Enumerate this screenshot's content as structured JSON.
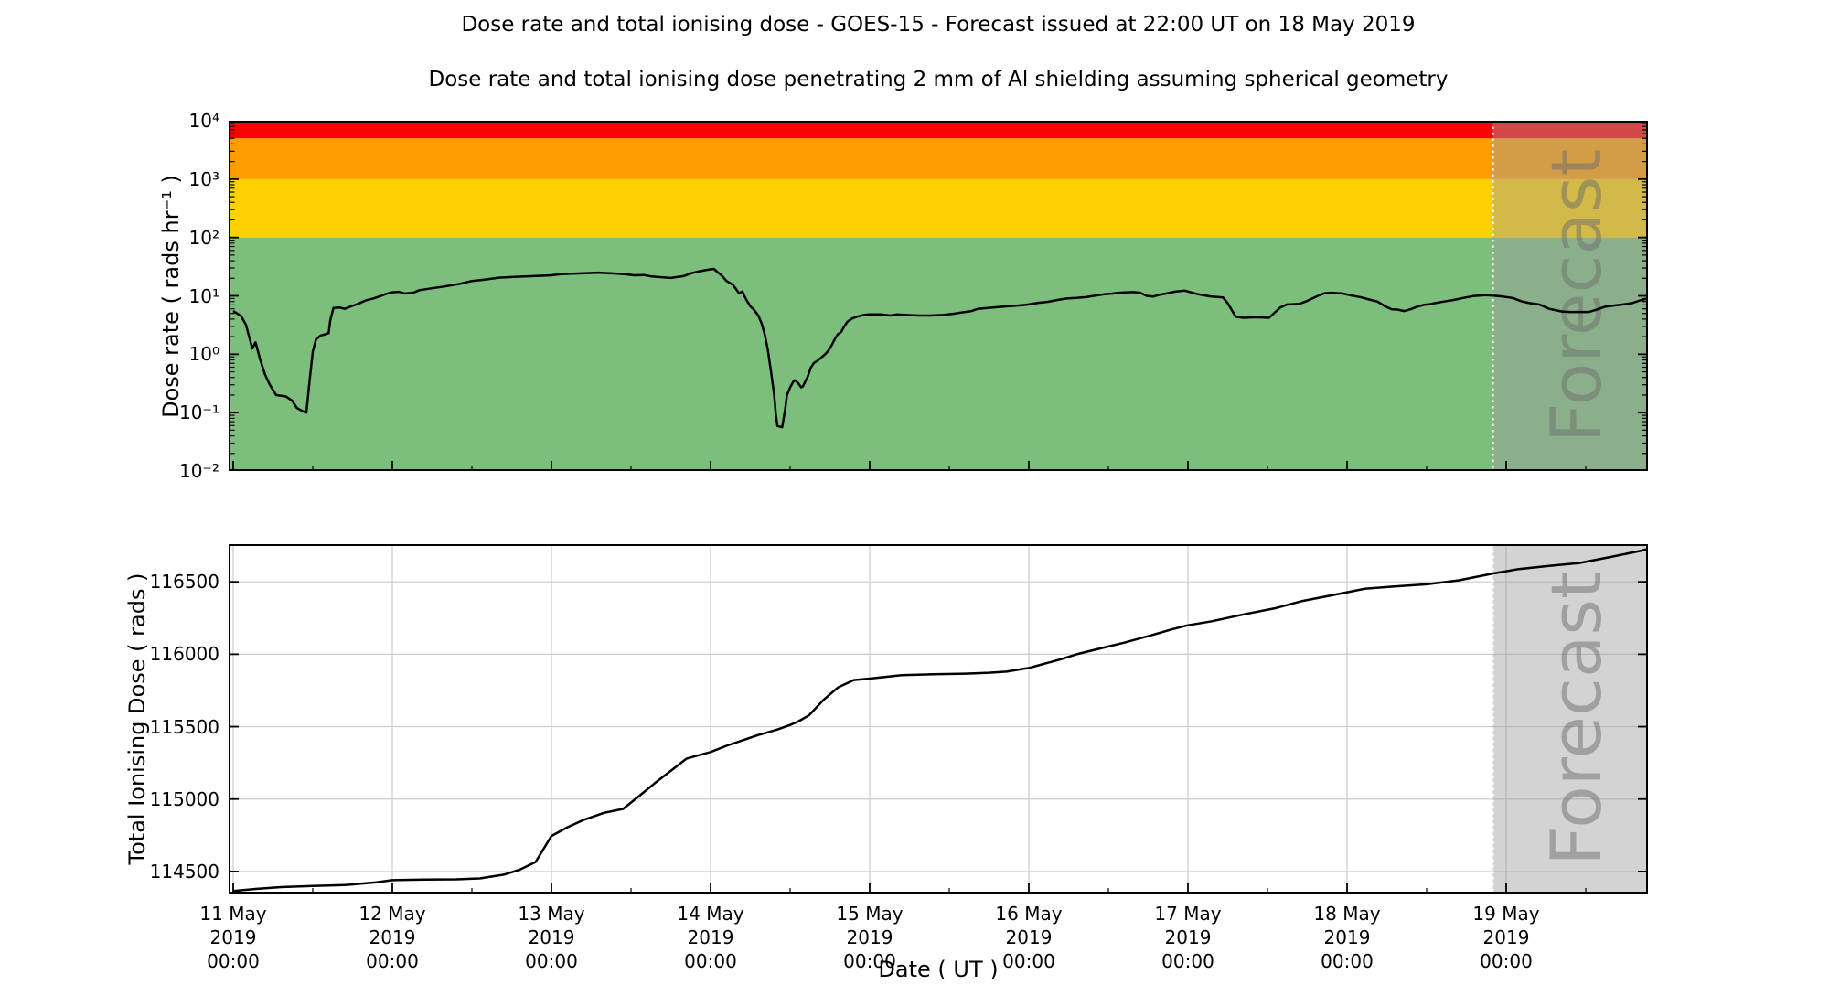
{
  "title": "Dose rate and total ionising dose - GOES-15 - Forecast issued at 22:00 UT on 18 May 2019",
  "subtitle": "Dose rate and total ionising dose penetrating 2 mm of Al shielding assuming spherical geometry",
  "xlabel": "Date ( UT )",
  "forecast": {
    "label": "Forecast",
    "start_days_from_11_may": 7.9167,
    "issued": "22:00 UT on 18 May 2019"
  },
  "colors": {
    "band_green": "#7cbe7c",
    "band_yellow": "#ffd000",
    "band_orange": "#ff9c00",
    "band_red": "#fe0000",
    "forecast_overlay": "rgba(158,158,158,0.45)",
    "watermark_gray": "#6e6e6e",
    "gridline": "#cccccc",
    "line": "#000000",
    "dotted_boundary": "#ffffff"
  },
  "top_chart": {
    "ylabel": "Dose rate ( rads hr⁻¹ )",
    "ytick_labels": [
      "10⁻²",
      "10⁻¹",
      "10⁰",
      "10¹",
      "10²",
      "10³",
      "10⁴"
    ],
    "ytick_exponents": [
      -2,
      -1,
      0,
      1,
      2,
      3,
      4
    ]
  },
  "bottom_chart": {
    "ylabel": "Total Ionising Dose ( rads )",
    "ytick_labels": [
      "114500",
      "115000",
      "115500",
      "116000",
      "116500"
    ],
    "ytick_values": [
      114500,
      115000,
      115500,
      116000,
      116500
    ]
  },
  "x_ticks": [
    {
      "day": "11 May",
      "year": "2019",
      "time": "00:00"
    },
    {
      "day": "12 May",
      "year": "2019",
      "time": "00:00"
    },
    {
      "day": "13 May",
      "year": "2019",
      "time": "00:00"
    },
    {
      "day": "14 May",
      "year": "2019",
      "time": "00:00"
    },
    {
      "day": "15 May",
      "year": "2019",
      "time": "00:00"
    },
    {
      "day": "16 May",
      "year": "2019",
      "time": "00:00"
    },
    {
      "day": "17 May",
      "year": "2019",
      "time": "00:00"
    },
    {
      "day": "18 May",
      "year": "2019",
      "time": "00:00"
    },
    {
      "day": "19 May",
      "year": "2019",
      "time": "00:00"
    }
  ],
  "chart_data": [
    {
      "type": "line",
      "name": "dose_rate",
      "title": "Dose rate ( rads/hr ) vs time",
      "x_unit": "days since 11 May 2019 00:00 UT",
      "xlim": [
        0,
        8.89
      ],
      "yscale": "log",
      "ylim": [
        0.01,
        10000
      ],
      "threshold_bands": [
        {
          "name": "green",
          "from": 0.01,
          "to": 100,
          "color": "#7cbe7c"
        },
        {
          "name": "yellow",
          "from": 100,
          "to": 1000,
          "color": "#ffd000"
        },
        {
          "name": "orange",
          "from": 1000,
          "to": 5000,
          "color": "#ff9c00"
        },
        {
          "name": "red",
          "from": 5000,
          "to": 10000,
          "color": "#fe0000"
        }
      ],
      "points": [
        [
          0,
          5.5
        ],
        [
          0.05,
          4.5
        ],
        [
          0.08,
          3.2
        ],
        [
          0.12,
          1.25
        ],
        [
          0.14,
          1.6
        ],
        [
          0.17,
          0.8
        ],
        [
          0.2,
          0.45
        ],
        [
          0.23,
          0.3
        ],
        [
          0.27,
          0.2
        ],
        [
          0.33,
          0.19
        ],
        [
          0.37,
          0.16
        ],
        [
          0.4,
          0.12
        ],
        [
          0.44,
          0.105
        ],
        [
          0.46,
          0.1
        ],
        [
          0.48,
          0.35
        ],
        [
          0.5,
          1.1
        ],
        [
          0.52,
          1.8
        ],
        [
          0.55,
          2.1
        ],
        [
          0.58,
          2.2
        ],
        [
          0.6,
          2.3
        ],
        [
          0.61,
          3.8
        ],
        [
          0.63,
          6.2
        ],
        [
          0.67,
          6.3
        ],
        [
          0.7,
          6.0
        ],
        [
          0.74,
          6.6
        ],
        [
          0.78,
          7.2
        ],
        [
          0.83,
          8.3
        ],
        [
          0.88,
          9.0
        ],
        [
          0.92,
          9.8
        ],
        [
          0.96,
          10.8
        ],
        [
          1.0,
          11.5
        ],
        [
          1.04,
          11.7
        ],
        [
          1.08,
          11.0
        ],
        [
          1.13,
          11.3
        ],
        [
          1.17,
          12.5
        ],
        [
          1.25,
          13.5
        ],
        [
          1.33,
          14.5
        ],
        [
          1.42,
          16.0
        ],
        [
          1.5,
          18.0
        ],
        [
          1.58,
          19.0
        ],
        [
          1.67,
          20.5
        ],
        [
          1.75,
          21.0
        ],
        [
          1.83,
          21.5
        ],
        [
          1.92,
          22.0
        ],
        [
          2.0,
          22.5
        ],
        [
          2.06,
          23.5
        ],
        [
          2.13,
          24.0
        ],
        [
          2.21,
          24.5
        ],
        [
          2.29,
          25.0
        ],
        [
          2.38,
          24.3
        ],
        [
          2.46,
          23.5
        ],
        [
          2.52,
          22.5
        ],
        [
          2.58,
          22.8
        ],
        [
          2.63,
          21.5
        ],
        [
          2.7,
          20.8
        ],
        [
          2.75,
          20.3
        ],
        [
          2.79,
          21.0
        ],
        [
          2.83,
          21.8
        ],
        [
          2.88,
          24.5
        ],
        [
          2.92,
          26.0
        ],
        [
          2.98,
          28.0
        ],
        [
          3.02,
          29.0
        ],
        [
          3.07,
          22.3
        ],
        [
          3.1,
          18.0
        ],
        [
          3.14,
          15.5
        ],
        [
          3.18,
          11.0
        ],
        [
          3.2,
          11.9
        ],
        [
          3.22,
          9.0
        ],
        [
          3.25,
          6.6
        ],
        [
          3.27,
          5.9
        ],
        [
          3.3,
          4.6
        ],
        [
          3.32,
          3.4
        ],
        [
          3.34,
          2.2
        ],
        [
          3.36,
          1.2
        ],
        [
          3.38,
          0.5
        ],
        [
          3.4,
          0.2
        ],
        [
          3.41,
          0.096
        ],
        [
          3.42,
          0.059
        ],
        [
          3.45,
          0.056
        ],
        [
          3.47,
          0.12
        ],
        [
          3.48,
          0.2
        ],
        [
          3.5,
          0.27
        ],
        [
          3.52,
          0.34
        ],
        [
          3.53,
          0.36
        ],
        [
          3.55,
          0.32
        ],
        [
          3.57,
          0.27
        ],
        [
          3.58,
          0.28
        ],
        [
          3.61,
          0.41
        ],
        [
          3.63,
          0.59
        ],
        [
          3.65,
          0.71
        ],
        [
          3.67,
          0.77
        ],
        [
          3.69,
          0.85
        ],
        [
          3.72,
          1.0
        ],
        [
          3.74,
          1.15
        ],
        [
          3.76,
          1.4
        ],
        [
          3.78,
          1.8
        ],
        [
          3.8,
          2.2
        ],
        [
          3.82,
          2.4
        ],
        [
          3.84,
          3.0
        ],
        [
          3.86,
          3.6
        ],
        [
          3.89,
          4.1
        ],
        [
          3.92,
          4.4
        ],
        [
          3.96,
          4.7
        ],
        [
          4.0,
          4.8
        ],
        [
          4.07,
          4.8
        ],
        [
          4.13,
          4.6
        ],
        [
          4.17,
          4.8
        ],
        [
          4.23,
          4.7
        ],
        [
          4.31,
          4.6
        ],
        [
          4.38,
          4.6
        ],
        [
          4.46,
          4.7
        ],
        [
          4.54,
          5.0
        ],
        [
          4.6,
          5.3
        ],
        [
          4.64,
          5.5
        ],
        [
          4.68,
          6.0
        ],
        [
          4.74,
          6.2
        ],
        [
          4.8,
          6.4
        ],
        [
          4.86,
          6.6
        ],
        [
          4.92,
          6.8
        ],
        [
          4.98,
          7.0
        ],
        [
          5.06,
          7.6
        ],
        [
          5.12,
          7.9
        ],
        [
          5.18,
          8.5
        ],
        [
          5.24,
          9.0
        ],
        [
          5.3,
          9.2
        ],
        [
          5.36,
          9.5
        ],
        [
          5.42,
          10.1
        ],
        [
          5.48,
          10.7
        ],
        [
          5.52,
          10.9
        ],
        [
          5.56,
          11.3
        ],
        [
          5.62,
          11.5
        ],
        [
          5.66,
          11.6
        ],
        [
          5.7,
          11.3
        ],
        [
          5.74,
          10.0
        ],
        [
          5.78,
          9.7
        ],
        [
          5.82,
          10.4
        ],
        [
          5.88,
          11.2
        ],
        [
          5.92,
          11.8
        ],
        [
          5.98,
          12.3
        ],
        [
          6.06,
          10.7
        ],
        [
          6.14,
          9.8
        ],
        [
          6.22,
          9.4
        ],
        [
          6.25,
          7.5
        ],
        [
          6.3,
          4.4
        ],
        [
          6.35,
          4.2
        ],
        [
          6.43,
          4.3
        ],
        [
          6.51,
          4.2
        ],
        [
          6.58,
          6.3
        ],
        [
          6.62,
          7.1
        ],
        [
          6.7,
          7.3
        ],
        [
          6.74,
          8.0
        ],
        [
          6.82,
          10.1
        ],
        [
          6.86,
          11.1
        ],
        [
          6.9,
          11.3
        ],
        [
          6.97,
          11.0
        ],
        [
          7.03,
          10.1
        ],
        [
          7.09,
          9.4
        ],
        [
          7.15,
          8.5
        ],
        [
          7.19,
          8.0
        ],
        [
          7.24,
          6.6
        ],
        [
          7.28,
          5.9
        ],
        [
          7.32,
          5.8
        ],
        [
          7.36,
          5.5
        ],
        [
          7.4,
          5.9
        ],
        [
          7.44,
          6.5
        ],
        [
          7.48,
          7.0
        ],
        [
          7.52,
          7.2
        ],
        [
          7.55,
          7.5
        ],
        [
          7.61,
          8.0
        ],
        [
          7.67,
          8.5
        ],
        [
          7.73,
          9.2
        ],
        [
          7.79,
          9.9
        ],
        [
          7.83,
          10.1
        ],
        [
          7.87,
          10.3
        ],
        [
          7.92,
          10.1
        ],
        [
          7.98,
          9.7
        ],
        [
          8.04,
          9.2
        ],
        [
          8.1,
          8.0
        ],
        [
          8.15,
          7.5
        ],
        [
          8.21,
          7.1
        ],
        [
          8.27,
          6.0
        ],
        [
          8.31,
          5.7
        ],
        [
          8.35,
          5.4
        ],
        [
          8.4,
          5.3
        ],
        [
          8.46,
          5.3
        ],
        [
          8.52,
          5.3
        ],
        [
          8.56,
          5.7
        ],
        [
          8.62,
          6.5
        ],
        [
          8.67,
          6.8
        ],
        [
          8.73,
          7.1
        ],
        [
          8.79,
          7.5
        ],
        [
          8.85,
          8.5
        ],
        [
          8.89,
          9.0
        ]
      ]
    },
    {
      "type": "line",
      "name": "total_ionising_dose",
      "title": "Total Ionising Dose ( rads ) vs time",
      "x_unit": "days since 11 May 2019 00:00 UT",
      "xlim": [
        0,
        8.89
      ],
      "yscale": "linear",
      "ylim": [
        114348,
        116760
      ],
      "grid": true,
      "points": [
        [
          0,
          114365
        ],
        [
          0.15,
          114380
        ],
        [
          0.3,
          114392
        ],
        [
          0.5,
          114400
        ],
        [
          0.7,
          114406
        ],
        [
          0.9,
          114425
        ],
        [
          1.0,
          114440
        ],
        [
          1.2,
          114444
        ],
        [
          1.4,
          114446
        ],
        [
          1.55,
          114452
        ],
        [
          1.7,
          114478
        ],
        [
          1.8,
          114512
        ],
        [
          1.9,
          114565
        ],
        [
          2.0,
          114745
        ],
        [
          2.1,
          114805
        ],
        [
          2.2,
          114855
        ],
        [
          2.33,
          114905
        ],
        [
          2.45,
          114932
        ],
        [
          2.55,
          115020
        ],
        [
          2.65,
          115110
        ],
        [
          2.75,
          115195
        ],
        [
          2.85,
          115280
        ],
        [
          3.0,
          115325
        ],
        [
          3.1,
          115368
        ],
        [
          3.2,
          115405
        ],
        [
          3.3,
          115442
        ],
        [
          3.42,
          115480
        ],
        [
          3.5,
          115512
        ],
        [
          3.55,
          115535
        ],
        [
          3.62,
          115580
        ],
        [
          3.71,
          115685
        ],
        [
          3.8,
          115770
        ],
        [
          3.9,
          115822
        ],
        [
          4.0,
          115832
        ],
        [
          4.2,
          115855
        ],
        [
          4.4,
          115862
        ],
        [
          4.6,
          115866
        ],
        [
          4.75,
          115872
        ],
        [
          4.86,
          115880
        ],
        [
          5.0,
          115905
        ],
        [
          5.2,
          115965
        ],
        [
          5.3,
          116000
        ],
        [
          5.45,
          116040
        ],
        [
          5.6,
          116080
        ],
        [
          5.75,
          116125
        ],
        [
          5.9,
          116172
        ],
        [
          6.0,
          116200
        ],
        [
          6.15,
          116228
        ],
        [
          6.35,
          116275
        ],
        [
          6.55,
          116318
        ],
        [
          6.72,
          116368
        ],
        [
          6.92,
          116410
        ],
        [
          7.0,
          116428
        ],
        [
          7.11,
          116452
        ],
        [
          7.3,
          116468
        ],
        [
          7.5,
          116483
        ],
        [
          7.7,
          116510
        ],
        [
          7.92,
          116558
        ],
        [
          8.08,
          116588
        ],
        [
          8.27,
          116610
        ],
        [
          8.46,
          116630
        ],
        [
          8.66,
          116672
        ],
        [
          8.85,
          116715
        ],
        [
          8.89,
          116728
        ]
      ]
    }
  ]
}
